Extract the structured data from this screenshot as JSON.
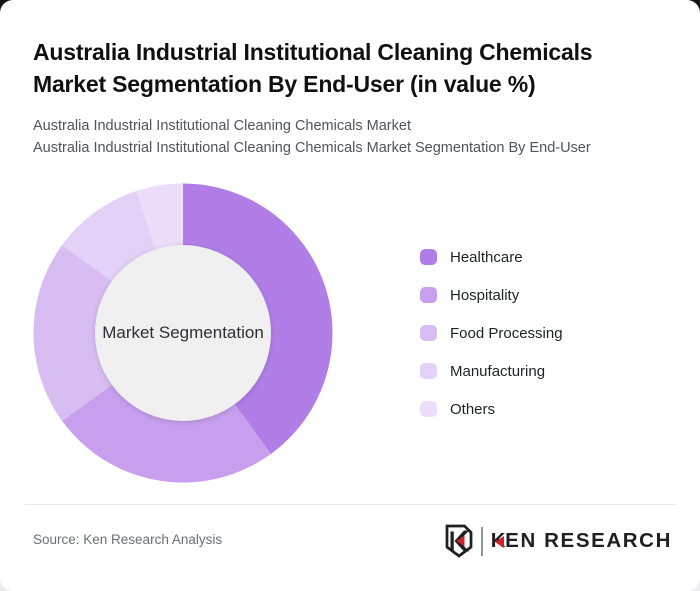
{
  "header": {
    "title_lines": [
      "Australia Industrial Institutional Cleaning Chemicals",
      "Market Segmentation By End-User (in value %)"
    ],
    "subtitle_lines": [
      "Australia Industrial Institutional Cleaning Chemicals Market",
      "Australia Industrial Institutional Cleaning Chemicals Market Segmentation By End-User"
    ]
  },
  "chart_data": {
    "type": "pie",
    "variant": "donut",
    "title": "Australia Industrial Institutional Cleaning Chemicals Market Segmentation By End-User (in value %)",
    "unit": "value %",
    "center_label": "Market Segmentation",
    "start_angle_deg": 0,
    "direction": "clockwise",
    "labels": [
      "Healthcare",
      "Hospitality",
      "Food Processing",
      "Manufacturing",
      "Others"
    ],
    "values": [
      40,
      25,
      20,
      10,
      5
    ],
    "colors": [
      "#b17ee7",
      "#c79fee",
      "#d8bdf3",
      "#e3d1f7",
      "#ecdefa"
    ],
    "inner_circle_color": "#f0f0f1",
    "outer_radius_px": 150,
    "inner_radius_px": 88,
    "legend_position": "right",
    "grid": false
  },
  "footer": {
    "source": "Source: Ken Research Analysis",
    "logo": {
      "emblem_icon": "ken-research-shield-k-icon",
      "wordmark_first_letter": "K",
      "wordmark_rest": "EN RESEARCH",
      "red": "#cf2127",
      "dark": "#202024",
      "bar_color": "#8f959b"
    }
  }
}
